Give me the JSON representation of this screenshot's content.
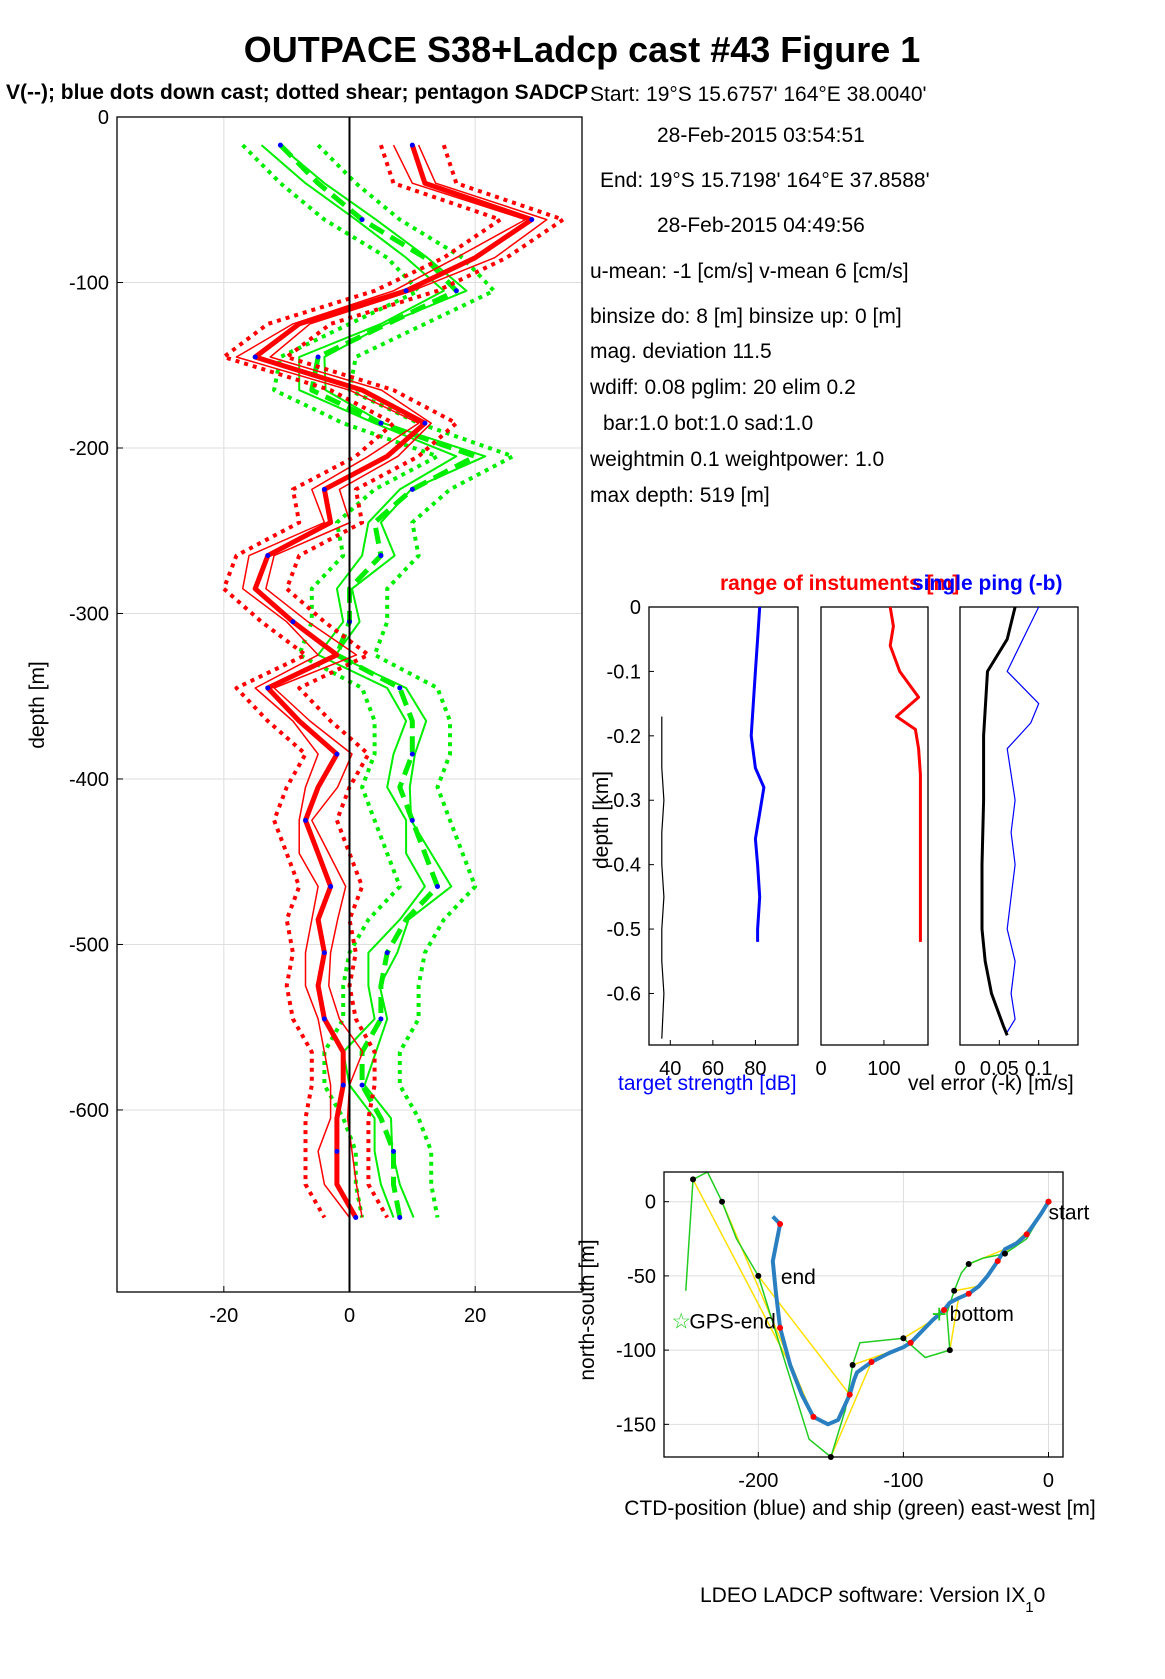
{
  "header": {
    "title": "OUTPACE S38+Ladcp cast #43  Figure 1",
    "subtitle": "V(--); blue dots down cast; dotted shear; pentagon SADCP"
  },
  "info": {
    "lines": [
      "Start:  19°S 15.6757'      164°E 38.0040'",
      "28-Feb-2015 03:54:51",
      "End:   19°S 15.7198'      164°E 37.8588'",
      "28-Feb-2015 04:49:56",
      "u-mean:  -1 [cm/s]    v-mean   6 [cm/s]",
      "binsize do: 8 [m]  binsize up:  0 [m]",
      "mag. deviation 11.5",
      "wdiff: 0.08  pglim: 20  elim 0.2",
      "bar:1.0 bot:1.0 sad:1.0",
      "weightmin 0.1  weightpower: 1.0",
      "max depth: 519 [m]"
    ]
  },
  "footer": {
    "software": "LDEO LADCP software: Version IX",
    "version_sub": "1",
    "version_tail": "0"
  },
  "colors": {
    "u": "#ff0000",
    "v": "#00ee00",
    "blue": "#0000ff",
    "ctd": "#2a7fc0",
    "ship": "#22cc22",
    "link": "#ffe000"
  },
  "chart_data": [
    {
      "type": "line",
      "ylabel": "depth [m]",
      "xlim": [
        -37,
        37
      ],
      "ylim": [
        -710,
        0
      ],
      "xticks": [
        "-20",
        "0",
        "20"
      ],
      "yticks": [
        "0",
        "-100",
        "-200",
        "-300",
        "-400",
        "-500",
        "-600"
      ],
      "depth": [
        -17,
        -40,
        -62,
        -85,
        -105,
        -125,
        -145,
        -165,
        -185,
        -205,
        -225,
        -245,
        -265,
        -285,
        -305,
        -325,
        -345,
        -365,
        -385,
        -405,
        -425,
        -445,
        -465,
        -485,
        -505,
        -525,
        -545,
        -565,
        -585,
        -605,
        -625,
        -645,
        -665
      ],
      "series": [
        {
          "name": "u",
          "values": [
            10,
            12,
            29,
            20,
            9,
            -8,
            -15,
            2,
            12,
            6,
            -4,
            -3,
            -13,
            -15,
            -9,
            -2,
            -13,
            -8,
            -2,
            -5,
            -7,
            -5,
            -3,
            -5,
            -4,
            -5,
            -4,
            -1,
            -1,
            -2,
            -2,
            -2,
            1
          ]
        },
        {
          "name": "v",
          "values": [
            -11,
            -5,
            2,
            12,
            17,
            6,
            -5,
            -6,
            5,
            20,
            10,
            4,
            5,
            0,
            0,
            -2,
            8,
            10,
            10,
            8,
            10,
            12,
            14,
            9,
            6,
            5,
            5,
            2,
            2,
            5,
            7,
            7,
            8
          ]
        }
      ]
    },
    {
      "type": "line",
      "title_left": "range of instuments [m]",
      "title_right": "single ping (-b)",
      "ylabel": "depth [km]",
      "ylim": [
        -0.68,
        0
      ],
      "yticks": [
        "0",
        "-0.1",
        "-0.2",
        "-0.3",
        "-0.4",
        "-0.5",
        "-0.6"
      ],
      "panels": [
        {
          "xticks": [
            "40",
            "60",
            "80"
          ],
          "xlim": [
            30,
            100
          ],
          "target_strength": {
            "depth": [
              0,
              -0.05,
              -0.1,
              -0.15,
              -0.2,
              -0.25,
              -0.28,
              -0.32,
              -0.36,
              -0.4,
              -0.45,
              -0.5,
              -0.52
            ],
            "values": [
              82,
              81,
              80,
              79,
              78,
              80,
              84,
              82,
              80,
              81,
              82,
              81,
              81
            ]
          },
          "instrument_profile": {
            "depth": [
              -0.17,
              -0.25,
              -0.3,
              -0.35,
              -0.4,
              -0.45,
              -0.5,
              -0.55,
              -0.6,
              -0.67
            ],
            "values": [
              36,
              36,
              37,
              36,
              36,
              37,
              36,
              36,
              37,
              36
            ]
          }
        },
        {
          "xticks": [
            "0",
            "100"
          ],
          "xlim": [
            0,
            170
          ],
          "range": {
            "depth": [
              0,
              -0.03,
              -0.06,
              -0.1,
              -0.14,
              -0.17,
              -0.19,
              -0.22,
              -0.26,
              -0.3,
              -0.4,
              -0.5,
              -0.52
            ],
            "values": [
              110,
              115,
              110,
              125,
              155,
              120,
              150,
              155,
              158,
              158,
              158,
              158,
              158
            ]
          }
        },
        {
          "xticks": [
            "0",
            "0.05",
            "0.1"
          ],
          "xlim": [
            0,
            0.15
          ],
          "vel_error_down": {
            "depth": [
              0,
              -0.05,
              -0.1,
              -0.2,
              -0.3,
              -0.4,
              -0.5,
              -0.55,
              -0.6,
              -0.65,
              -0.665
            ],
            "values": [
              0.07,
              0.06,
              0.035,
              0.03,
              0.03,
              0.028,
              0.028,
              0.032,
              0.04,
              0.055,
              0.06
            ]
          },
          "single_ping": {
            "depth": [
              0,
              -0.05,
              -0.1,
              -0.15,
              -0.18,
              -0.22,
              -0.3,
              -0.35,
              -0.4,
              -0.45,
              -0.5,
              -0.55,
              -0.6,
              -0.64,
              -0.66
            ],
            "values": [
              0.1,
              0.08,
              0.06,
              0.1,
              0.09,
              0.06,
              0.07,
              0.065,
              0.07,
              0.065,
              0.06,
              0.07,
              0.065,
              0.07,
              0.06
            ]
          }
        }
      ],
      "xlabel_left": "target strength [dB]",
      "xlabel_right": "vel error (-k) [m/s]"
    },
    {
      "type": "line",
      "xlabel": "CTD-position (blue) and ship (green) east-west [m]",
      "ylabel": "north-south [m]",
      "xlim": [
        -265,
        10
      ],
      "ylim": [
        -172,
        20
      ],
      "xticks": [
        "-200",
        "-100",
        "0"
      ],
      "yticks": [
        "0",
        "-50",
        "-100",
        "-150"
      ],
      "labels": {
        "start": "start",
        "end": "end",
        "bottom": "bottom",
        "gps_end": "GPS-end"
      },
      "ctd": {
        "x": [
          0,
          -5,
          -10,
          -15,
          -22,
          -30,
          -35,
          -42,
          -48,
          -55,
          -62,
          -68,
          -72,
          -80,
          -88,
          -95,
          -100,
          -110,
          -122,
          -132,
          -134,
          -137,
          -145,
          -152,
          -162,
          -170,
          -178,
          -185,
          -188,
          -190,
          -185,
          -190
        ],
        "y": [
          0,
          -8,
          -15,
          -22,
          -28,
          -32,
          -40,
          -50,
          -57,
          -62,
          -65,
          -68,
          -73,
          -80,
          -88,
          -95,
          -98,
          -102,
          -108,
          -115,
          -120,
          -130,
          -147,
          -150,
          -145,
          -130,
          -110,
          -85,
          -60,
          -40,
          -15,
          -10
        ]
      },
      "ship": {
        "x": [
          0,
          -15,
          -30,
          -45,
          -55,
          -60,
          -65,
          -70,
          -68,
          -85,
          -100,
          -130,
          -135,
          -140,
          -150,
          -165,
          -200,
          -215,
          -225,
          -235,
          -245,
          -250
        ],
        "y": [
          0,
          -25,
          -35,
          -38,
          -42,
          -48,
          -60,
          -75,
          -100,
          -105,
          -92,
          -95,
          -110,
          -140,
          -172,
          -160,
          -50,
          -25,
          0,
          20,
          15,
          -60
        ]
      },
      "gps_end": {
        "x": -253,
        "y": -80
      },
      "bottom": {
        "x": -75,
        "y": -75
      },
      "end": {
        "x": -190,
        "y": -50
      }
    }
  ]
}
